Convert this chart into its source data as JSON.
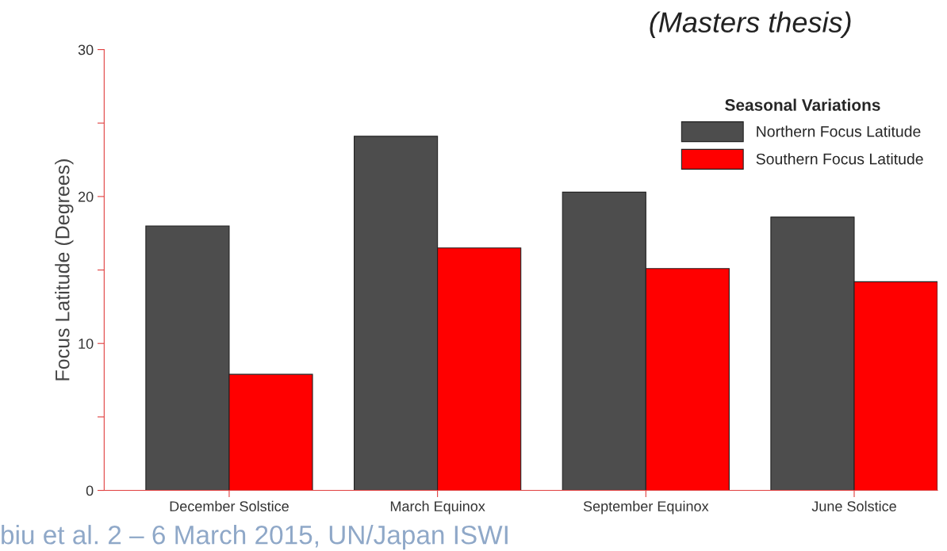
{
  "chart_data": {
    "type": "bar",
    "ylabel": "Focus Latitude (Degrees)",
    "legend_title": "Seasonal Variations",
    "categories": [
      "December Solstice",
      "March Equinox",
      "September Equinox",
      "June Solstice"
    ],
    "series": [
      {
        "name": "Northern Focus Latitude",
        "color": "#4d4d4d",
        "values": [
          18.0,
          24.1,
          20.3,
          18.6
        ]
      },
      {
        "name": "Southern Focus Latitude",
        "color": "#ff0000",
        "values": [
          7.9,
          16.5,
          15.1,
          14.2
        ]
      }
    ],
    "ylim": [
      0,
      30
    ],
    "yticks": [
      0,
      {
        "value": 5,
        "label": null
      },
      10,
      {
        "value": 15,
        "label": null
      },
      20,
      {
        "value": 25,
        "label": null
      },
      30
    ],
    "grid": false,
    "legend": "top right",
    "annotations": [
      "(Masters thesis)",
      "biu et al. 2 – 6 March 2015, UN/Japan ISWI"
    ]
  }
}
